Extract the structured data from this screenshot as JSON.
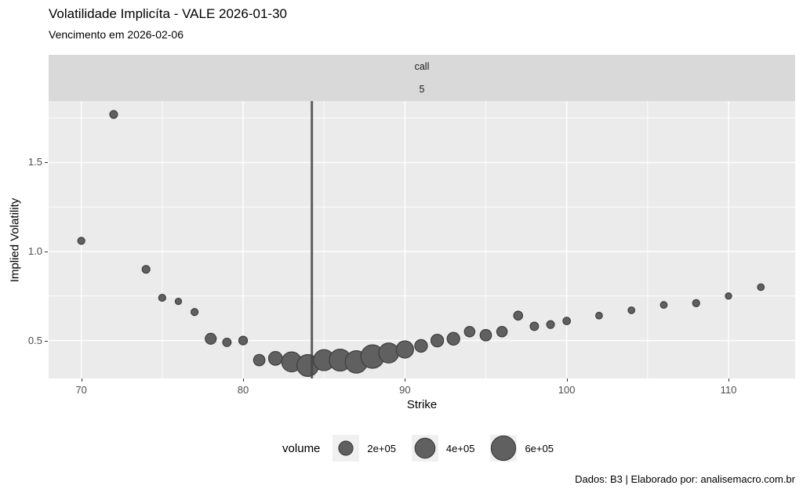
{
  "title": "Volatilidade Implicíta - VALE 2026-01-30",
  "subtitle": "Vencimento em 2026-02-06",
  "facet": {
    "row1": "call",
    "row2": "5"
  },
  "caption": "Dados: B3 | Elaborado por: analisemacro.com.br",
  "colors": {
    "panel_bg": "#EBEBEB",
    "strip_bg": "#D9D9D9",
    "grid": "#FFFFFF",
    "point_fill": "#606060",
    "point_stroke": "#3d3d3d",
    "vline": "#454545",
    "tick_label": "#4d4d4d"
  },
  "chart_data": {
    "type": "scatter",
    "title": "Volatilidade Implicíta - VALE 2026-01-30",
    "subtitle": "Vencimento em 2026-02-06",
    "facet_labels": [
      "call",
      "5"
    ],
    "xlabel": "Strike",
    "ylabel": "Implied Volatility",
    "xlim": [
      67.98,
      114.12
    ],
    "ylim": [
      0.287,
      1.845
    ],
    "x_ticks": [
      70,
      80,
      90,
      100,
      110
    ],
    "x_minor": [
      75,
      85,
      95,
      105
    ],
    "y_ticks": [
      0.5,
      1.0,
      1.5
    ],
    "y_minor": [
      0.75,
      1.25,
      1.75
    ],
    "grid": "on",
    "vline_x": 84.25,
    "legend": {
      "title": "volume",
      "position": "bottom",
      "reference_value": 200000,
      "reference_radius": 9,
      "items": [
        {
          "label": "2e+05",
          "value": 200000
        },
        {
          "label": "4e+05",
          "value": 400000
        },
        {
          "label": "6e+05",
          "value": 600000
        }
      ]
    },
    "series": [
      {
        "name": "call-5",
        "points": [
          {
            "strike": 70,
            "iv": 1.06,
            "volume": 50000
          },
          {
            "strike": 72,
            "iv": 1.77,
            "volume": 60000
          },
          {
            "strike": 74,
            "iv": 0.9,
            "volume": 60000
          },
          {
            "strike": 75,
            "iv": 0.74,
            "volume": 50000
          },
          {
            "strike": 76,
            "iv": 0.72,
            "volume": 40000
          },
          {
            "strike": 77,
            "iv": 0.66,
            "volume": 50000
          },
          {
            "strike": 78,
            "iv": 0.51,
            "volume": 120000
          },
          {
            "strike": 79,
            "iv": 0.49,
            "volume": 70000
          },
          {
            "strike": 80,
            "iv": 0.5,
            "volume": 75000
          },
          {
            "strike": 81,
            "iv": 0.39,
            "volume": 130000
          },
          {
            "strike": 82,
            "iv": 0.4,
            "volume": 190000
          },
          {
            "strike": 83,
            "iv": 0.38,
            "volume": 400000
          },
          {
            "strike": 84,
            "iv": 0.36,
            "volume": 480000
          },
          {
            "strike": 85,
            "iv": 0.39,
            "volume": 440000
          },
          {
            "strike": 86,
            "iv": 0.39,
            "volume": 480000
          },
          {
            "strike": 87,
            "iv": 0.38,
            "volume": 500000
          },
          {
            "strike": 88,
            "iv": 0.41,
            "volume": 550000
          },
          {
            "strike": 89,
            "iv": 0.43,
            "volume": 400000
          },
          {
            "strike": 90,
            "iv": 0.45,
            "volume": 300000
          },
          {
            "strike": 91,
            "iv": 0.47,
            "volume": 160000
          },
          {
            "strike": 92,
            "iv": 0.5,
            "volume": 160000
          },
          {
            "strike": 93,
            "iv": 0.51,
            "volume": 160000
          },
          {
            "strike": 94,
            "iv": 0.55,
            "volume": 110000
          },
          {
            "strike": 95,
            "iv": 0.53,
            "volume": 130000
          },
          {
            "strike": 96,
            "iv": 0.55,
            "volume": 110000
          },
          {
            "strike": 97,
            "iv": 0.64,
            "volume": 80000
          },
          {
            "strike": 98,
            "iv": 0.58,
            "volume": 70000
          },
          {
            "strike": 99,
            "iv": 0.59,
            "volume": 60000
          },
          {
            "strike": 100,
            "iv": 0.61,
            "volume": 55000
          },
          {
            "strike": 102,
            "iv": 0.64,
            "volume": 45000
          },
          {
            "strike": 104,
            "iv": 0.67,
            "volume": 45000
          },
          {
            "strike": 106,
            "iv": 0.7,
            "volume": 45000
          },
          {
            "strike": 108,
            "iv": 0.71,
            "volume": 50000
          },
          {
            "strike": 110,
            "iv": 0.75,
            "volume": 40000
          },
          {
            "strike": 112,
            "iv": 0.8,
            "volume": 45000
          }
        ]
      }
    ]
  }
}
